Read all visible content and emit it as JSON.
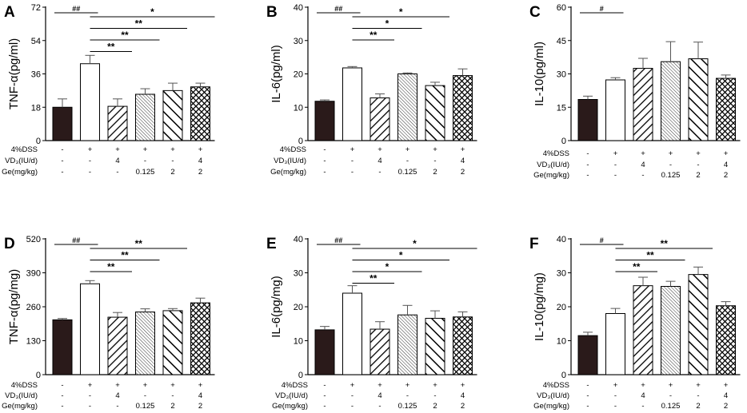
{
  "chart_data": [
    {
      "panel": "A",
      "type": "bar",
      "ylabel": "TNF-α(pg/ml)",
      "ylim": [
        0,
        72
      ],
      "yticks": [
        0,
        18,
        36,
        54,
        72
      ],
      "values": [
        18,
        41.5,
        18.5,
        25,
        27,
        29
      ],
      "errors": [
        4.5,
        4.5,
        4,
        3,
        4,
        2
      ],
      "sig": [
        {
          "a": 0,
          "b": 1,
          "t": "##"
        },
        {
          "a": 1,
          "b": 2,
          "t": "**"
        },
        {
          "a": 1,
          "b": 3,
          "t": "**"
        },
        {
          "a": 1,
          "b": 4,
          "t": "**"
        },
        {
          "a": 1,
          "b": 5,
          "t": "*"
        }
      ],
      "rows": [
        [
          "-",
          "+",
          "+",
          "+",
          "+",
          "+"
        ],
        [
          "-",
          "-",
          "4",
          "-",
          "-",
          "4"
        ],
        [
          "-",
          "-",
          "-",
          "0.125",
          "2",
          "2"
        ]
      ]
    },
    {
      "panel": "B",
      "type": "bar",
      "ylabel": "IL-6(pg/ml)",
      "ylim": [
        0,
        40
      ],
      "yticks": [
        0,
        10,
        20,
        30,
        40
      ],
      "values": [
        11.8,
        21.8,
        12.8,
        20,
        16.5,
        19.5
      ],
      "errors": [
        0.4,
        0.4,
        1.2,
        0.3,
        1.0,
        2.0
      ],
      "sig": [
        {
          "a": 0,
          "b": 1,
          "t": "##"
        },
        {
          "a": 1,
          "b": 2,
          "t": "**"
        },
        {
          "a": 1,
          "b": 3,
          "t": "*"
        },
        {
          "a": 1,
          "b": 4,
          "t": "*"
        }
      ],
      "rows": [
        [
          "-",
          "+",
          "+",
          "+",
          "+",
          "+"
        ],
        [
          "-",
          "-",
          "4",
          "-",
          "-",
          "4"
        ],
        [
          "-",
          "-",
          "-",
          "0.125",
          "2",
          "2"
        ]
      ]
    },
    {
      "panel": "C",
      "type": "bar",
      "ylabel": "IL-10(pg/ml)",
      "ylim": [
        0,
        60
      ],
      "yticks": [
        0,
        15,
        30,
        45,
        60
      ],
      "values": [
        18.5,
        27.3,
        32.5,
        35.5,
        36.8,
        28
      ],
      "errors": [
        1.5,
        1.0,
        4.5,
        9,
        7.5,
        1.5
      ],
      "sig": [
        {
          "a": 0,
          "b": 1,
          "t": "#"
        }
      ],
      "rows": [
        [
          "-",
          "+",
          "+",
          "+",
          "+",
          "+"
        ],
        [
          "-",
          "-",
          "4",
          "-",
          "-",
          "4"
        ],
        [
          "-",
          "-",
          "-",
          "0.125",
          "2",
          "2"
        ]
      ]
    },
    {
      "panel": "D",
      "type": "bar",
      "ylabel": "TNF-α(pg/mg)",
      "ylim": [
        0,
        520
      ],
      "yticks": [
        0,
        130,
        260,
        390,
        520
      ],
      "values": [
        210,
        348,
        220,
        240,
        245,
        275
      ],
      "errors": [
        5,
        12,
        18,
        12,
        8,
        18
      ],
      "sig": [
        {
          "a": 0,
          "b": 1,
          "t": "##"
        },
        {
          "a": 1,
          "b": 2,
          "t": "**"
        },
        {
          "a": 1,
          "b": 3,
          "t": "**"
        },
        {
          "a": 1,
          "b": 4,
          "t": "**"
        }
      ],
      "rows": [
        [
          "-",
          "+",
          "+",
          "+",
          "+",
          "+"
        ],
        [
          "-",
          "-",
          "4",
          "-",
          "-",
          "4"
        ],
        [
          "-",
          "-",
          "-",
          "0.125",
          "2",
          "2"
        ]
      ]
    },
    {
      "panel": "E",
      "type": "bar",
      "ylabel": "IL-6(pg/mg)",
      "ylim": [
        0,
        40
      ],
      "yticks": [
        0,
        10,
        20,
        30,
        40
      ],
      "values": [
        13.2,
        24,
        13.4,
        17.6,
        16.6,
        17
      ],
      "errors": [
        1.0,
        2.2,
        2.2,
        2.8,
        2.2,
        1.5
      ],
      "sig": [
        {
          "a": 0,
          "b": 1,
          "t": "##"
        },
        {
          "a": 1,
          "b": 2,
          "t": "**"
        },
        {
          "a": 1,
          "b": 3,
          "t": "*"
        },
        {
          "a": 1,
          "b": 4,
          "t": "*"
        },
        {
          "a": 1,
          "b": 5,
          "t": "*"
        }
      ],
      "rows": [
        [
          "-",
          "+",
          "+",
          "+",
          "+",
          "+"
        ],
        [
          "-",
          "-",
          "4",
          "-",
          "-",
          "4"
        ],
        [
          "-",
          "-",
          "-",
          "0.125",
          "2",
          "2"
        ]
      ]
    },
    {
      "panel": "F",
      "type": "bar",
      "ylabel": "IL-10(pg/mg)",
      "ylim": [
        0,
        40
      ],
      "yticks": [
        0,
        10,
        20,
        30,
        40
      ],
      "values": [
        11.5,
        18,
        26.2,
        26,
        29.5,
        20.3
      ],
      "errors": [
        1.0,
        1.5,
        2.5,
        1.5,
        2.2,
        1.2
      ],
      "sig": [
        {
          "a": 0,
          "b": 1,
          "t": "#"
        },
        {
          "a": 1,
          "b": 2,
          "t": "**"
        },
        {
          "a": 1,
          "b": 3,
          "t": "**"
        },
        {
          "a": 1,
          "b": 4,
          "t": "**"
        }
      ],
      "rows": [
        [
          "-",
          "+",
          "+",
          "+",
          "+",
          "+"
        ],
        [
          "-",
          "-",
          "4",
          "-",
          "-",
          "4"
        ],
        [
          "-",
          "-",
          "-",
          "0.125",
          "2",
          "2"
        ]
      ]
    }
  ],
  "group_rows": [
    "4%DSS",
    "VD₃(IU/d)",
    "Ge(mg/kg)"
  ],
  "colors": {
    "bar_control": "#2a1a1a",
    "line": "#000000",
    "error": "#555555",
    "fill": "#ffffff"
  }
}
